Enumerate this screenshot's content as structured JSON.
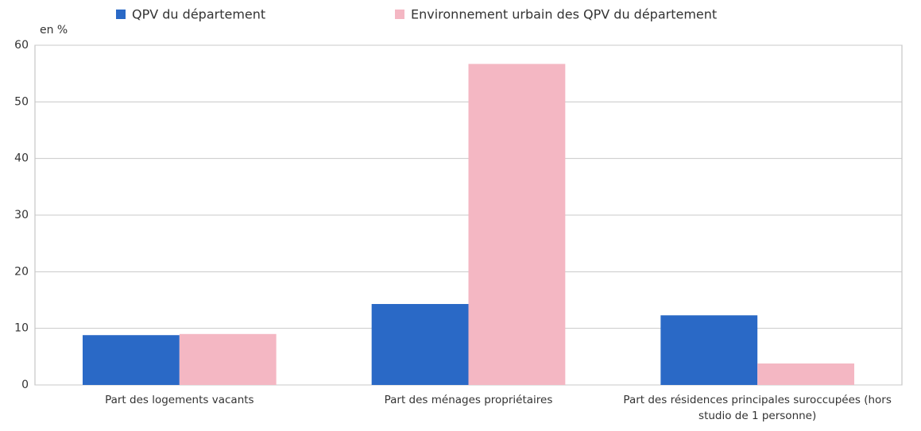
{
  "chart_data": {
    "type": "bar",
    "y_axis_label": "en %",
    "categories": [
      "Part des logements vacants",
      "Part des ménages propriétaires",
      "Part des résidences principales suroccupées (hors studio de 1 personne)"
    ],
    "series": [
      {
        "name": "QPV du département",
        "color": "#2a69c6",
        "values": [
          8.8,
          14.3,
          12.3
        ]
      },
      {
        "name": "Environnement urbain des QPV du département",
        "color": "#f4b7c3",
        "values": [
          9.0,
          56.7,
          3.8
        ]
      }
    ],
    "ylim": [
      0,
      60
    ],
    "yticks": [
      0,
      10,
      20,
      30,
      40,
      50,
      60
    ],
    "grid": true,
    "legend": "top"
  }
}
